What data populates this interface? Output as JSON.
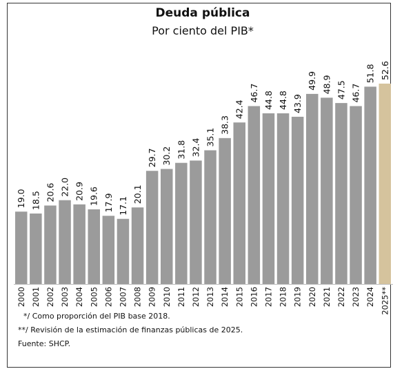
{
  "chart_data": {
    "type": "bar",
    "title": "Deuda pública",
    "subtitle": "Por ciento del PIB*",
    "categories": [
      "2000",
      "2001",
      "2002",
      "2003",
      "2004",
      "2005",
      "2006",
      "2007",
      "2008",
      "2009",
      "2010",
      "2011",
      "2012",
      "2013",
      "2014",
      "2015",
      "2016",
      "2017",
      "2018",
      "2019",
      "2020",
      "2021",
      "2022",
      "2023",
      "2024",
      "2025**"
    ],
    "values": [
      19.0,
      18.5,
      20.6,
      22.0,
      20.9,
      19.6,
      17.9,
      17.1,
      20.1,
      29.7,
      30.2,
      31.8,
      32.4,
      35.1,
      38.3,
      42.4,
      46.7,
      44.8,
      44.8,
      43.9,
      49.9,
      48.9,
      47.5,
      46.7,
      51.8,
      52.6
    ],
    "value_labels": [
      "19.0",
      "18.5",
      "20.6",
      "22.0",
      "20.9",
      "19.6",
      "17.9",
      "17.1",
      "20.1",
      "29.7",
      "30.2",
      "31.8",
      "32.4",
      "35.1",
      "38.3",
      "42.4",
      "46.7",
      "44.8",
      "44.8",
      "43.9",
      "49.9",
      "48.9",
      "47.5",
      "46.7",
      "51.8",
      "52.6"
    ],
    "colors": [
      "#9b9b9b",
      "#9b9b9b",
      "#9b9b9b",
      "#9b9b9b",
      "#9b9b9b",
      "#9b9b9b",
      "#9b9b9b",
      "#9b9b9b",
      "#9b9b9b",
      "#9b9b9b",
      "#9b9b9b",
      "#9b9b9b",
      "#9b9b9b",
      "#9b9b9b",
      "#9b9b9b",
      "#9b9b9b",
      "#9b9b9b",
      "#9b9b9b",
      "#9b9b9b",
      "#9b9b9b",
      "#9b9b9b",
      "#9b9b9b",
      "#9b9b9b",
      "#9b9b9b",
      "#9b9b9b",
      "#d5c39d"
    ],
    "notes": [
      "*/ Como proporción del PIB base 2018.",
      "**/ Revisión de la estimación de finanzas públicas de 2025.",
      "Fuente: SHCP."
    ]
  }
}
